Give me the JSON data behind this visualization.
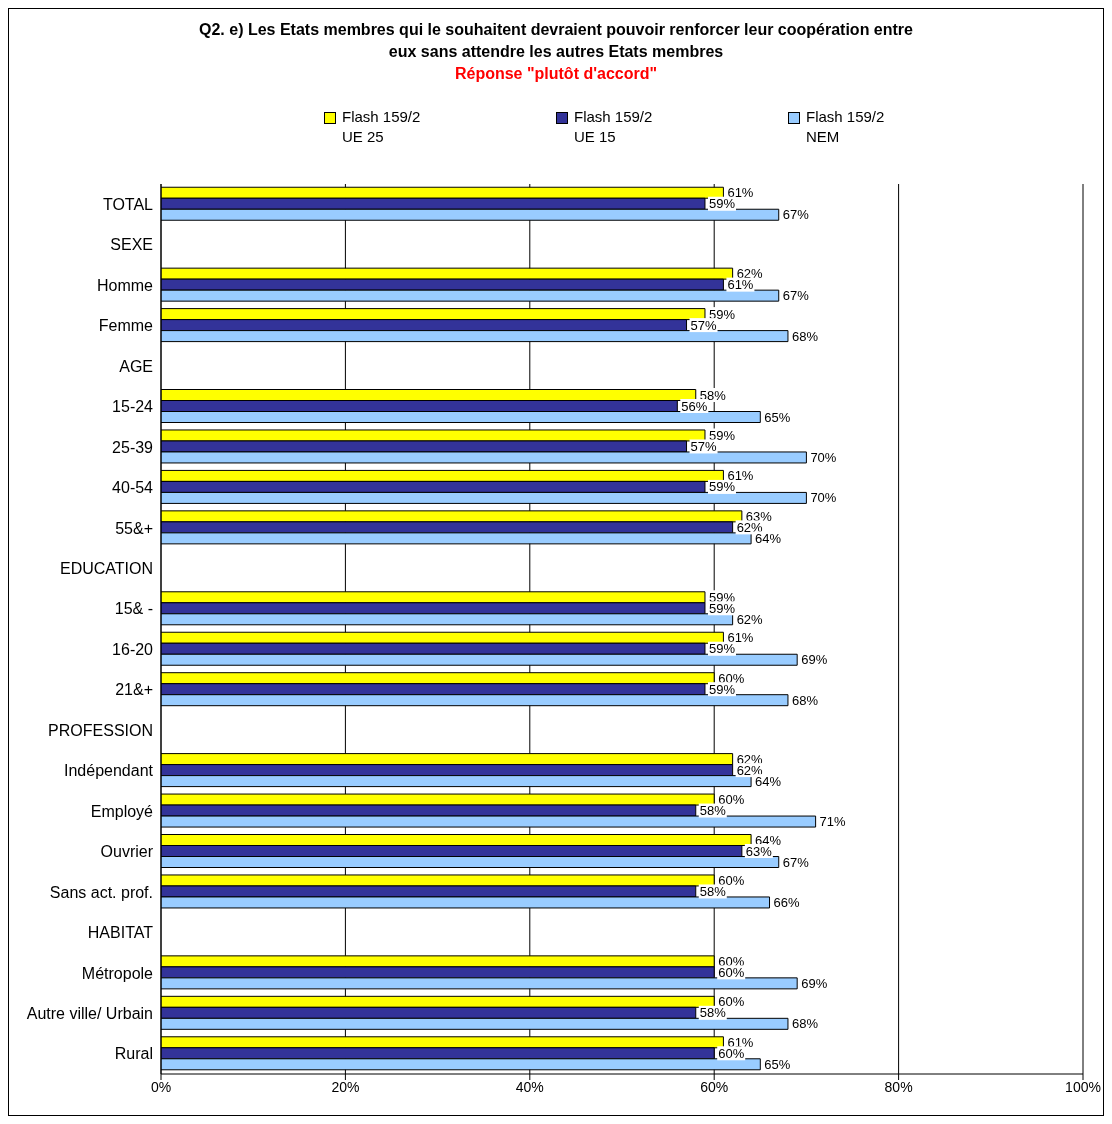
{
  "chart_data": {
    "type": "bar",
    "orientation": "horizontal",
    "title": "Q2. e) Les Etats membres qui le souhaitent devraient pouvoir renforcer leur coopération entre eux sans attendre les autres Etats membres",
    "subtitle": "Réponse \"plutôt d'accord\"",
    "categories": [
      "TOTAL",
      "SEXE",
      "Homme",
      "Femme",
      "AGE",
      "15-24",
      "25-39",
      "40-54",
      "55&+",
      "EDUCATION",
      "15& -",
      "16-20",
      "21&+",
      "PROFESSION",
      "Indépendant",
      "Employé",
      "Ouvrier",
      "Sans act. prof.",
      "HABITAT",
      "Métropole",
      "Autre ville/ Urbain",
      "Rural"
    ],
    "series": [
      {
        "name": "Flash 159/2 UE 25",
        "color": "#ffff00",
        "values": [
          61,
          null,
          62,
          59,
          null,
          58,
          59,
          61,
          63,
          null,
          59,
          61,
          60,
          null,
          62,
          60,
          64,
          60,
          null,
          60,
          60,
          61
        ],
        "value_labels": [
          "61%",
          null,
          "62%",
          "59%",
          null,
          "58%",
          "59%",
          "61%",
          "63%",
          null,
          "59%",
          "61%",
          "60%",
          null,
          "62%",
          "60%",
          "64%",
          "60%",
          null,
          "60%",
          "60%",
          "61%"
        ]
      },
      {
        "name": "Flash 159/2 UE 15",
        "color": "#333399",
        "values": [
          59,
          null,
          61,
          57,
          null,
          56,
          57,
          59,
          62,
          null,
          59,
          59,
          59,
          null,
          62,
          58,
          63,
          58,
          null,
          60,
          58,
          60
        ],
        "value_labels": [
          "59%",
          null,
          "61%",
          "57%",
          null,
          "56%",
          "57%",
          "59%",
          "62%",
          null,
          "59%",
          "59%",
          "59%",
          null,
          "62%",
          "58%",
          "63%",
          "58%",
          null,
          "60%",
          "58%",
          "60%"
        ]
      },
      {
        "name": "Flash 159/2 NEM",
        "color": "#99ccff",
        "values": [
          67,
          null,
          67,
          68,
          null,
          65,
          70,
          70,
          64,
          null,
          62,
          69,
          68,
          null,
          64,
          71,
          67,
          66,
          null,
          69,
          68,
          65
        ],
        "value_labels": [
          "67%",
          null,
          "67%",
          "68%",
          null,
          "65%",
          "70%",
          "70%",
          "64%",
          null,
          "62%",
          "69%",
          "68%",
          null,
          "64%",
          "71%",
          "67%",
          "66%",
          null,
          "69%",
          "68%",
          "65%"
        ]
      }
    ],
    "xlim": [
      0,
      100
    ],
    "xticks": [
      {
        "value": 0,
        "label": "0%"
      },
      {
        "value": 20,
        "label": "20%"
      },
      {
        "value": 40,
        "label": "40%"
      },
      {
        "value": 60,
        "label": "60%"
      },
      {
        "value": 80,
        "label": "80%"
      },
      {
        "value": 100,
        "label": "100%"
      }
    ],
    "grid": "x",
    "legend": "top"
  }
}
